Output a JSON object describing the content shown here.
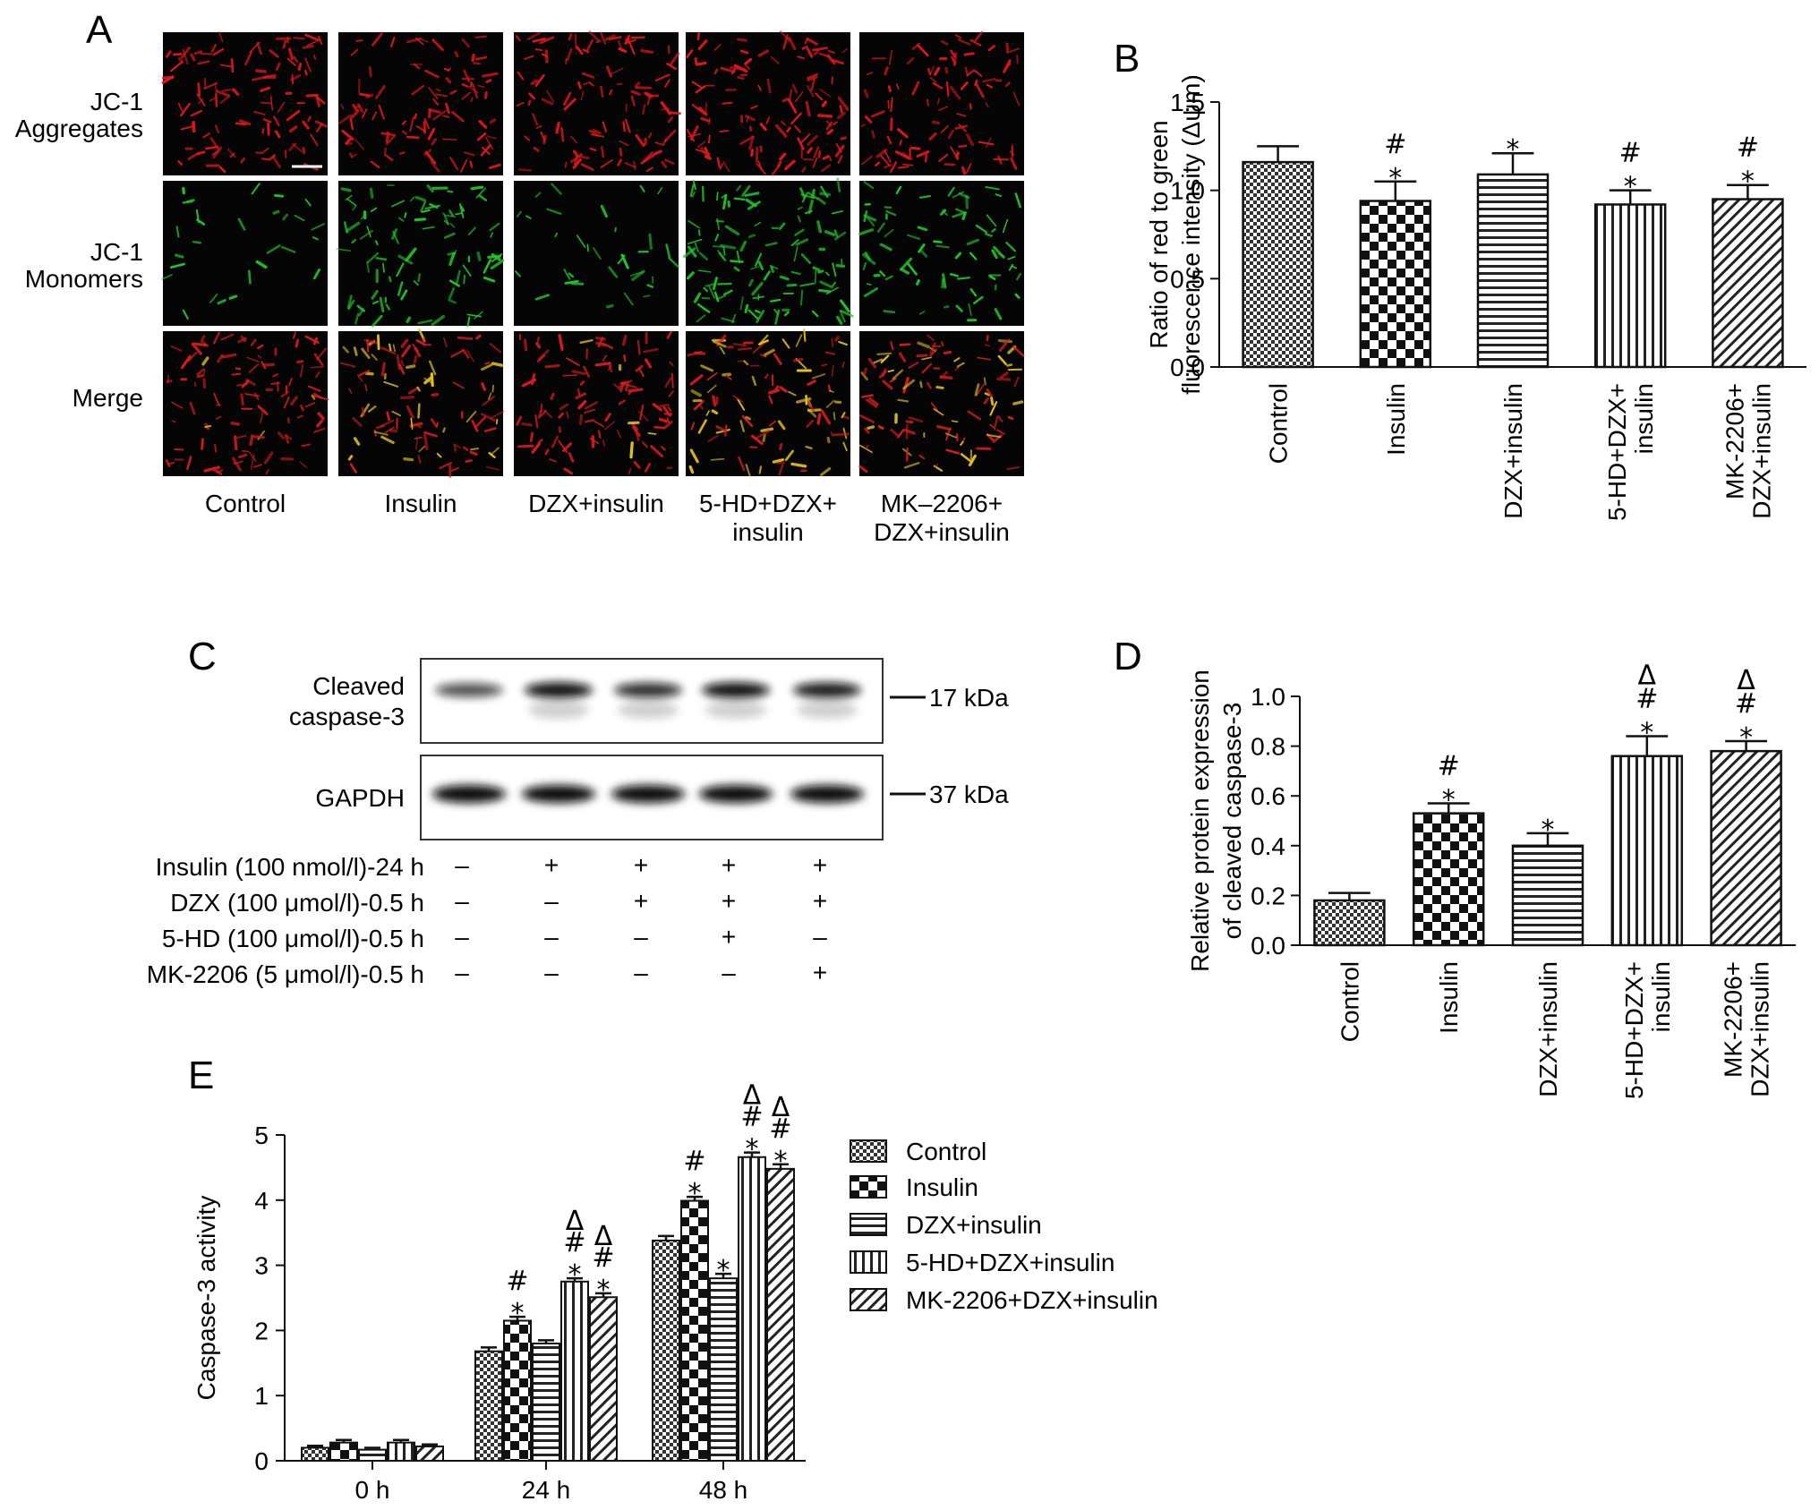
{
  "figure": {
    "panels": {
      "a": "A",
      "b": "B",
      "c": "C",
      "d": "D",
      "e": "E"
    }
  },
  "panel_a": {
    "row_labels": [
      [
        "JC-1",
        "Aggregates"
      ],
      [
        "JC-1",
        "Monomers"
      ],
      [
        "Merge"
      ]
    ],
    "col_labels": [
      [
        "Control"
      ],
      [
        "Insulin"
      ],
      [
        "DZX+insulin"
      ],
      [
        "5-HD+DZX+",
        "insulin"
      ],
      [
        "MK–2206+",
        "DZX+insulin"
      ]
    ],
    "row_colors": {
      "aggregates": "#e0181b",
      "monomers": "#22c52a",
      "merge_red": "#d81c1c",
      "merge_yellow": "#e6c21c"
    }
  },
  "panel_c": {
    "protein_rows": [
      {
        "label_lines": [
          "Cleaved",
          "caspase-3"
        ],
        "marker": "17 kDa"
      },
      {
        "label_lines": [
          "GAPDH"
        ],
        "marker": "37 kDa"
      }
    ],
    "treatment_rows": [
      {
        "label": "Insulin (100 nmol/l)-24 h",
        "signs": [
          "–",
          "+",
          "+",
          "+",
          "+"
        ]
      },
      {
        "label": "DZX (100 μmol/l)-0.5 h",
        "signs": [
          "–",
          "–",
          "+",
          "+",
          "+"
        ]
      },
      {
        "label": "5-HD (100 μmol/l)-0.5 h",
        "signs": [
          "–",
          "–",
          "–",
          "+",
          "–"
        ]
      },
      {
        "label": "MK-2206 (5 μmol/l)-0.5 h",
        "signs": [
          "–",
          "–",
          "–",
          "–",
          "+"
        ]
      }
    ],
    "band_intensity_caspase": [
      0.55,
      0.9,
      0.75,
      0.9,
      0.85
    ],
    "band_intensity_gapdh": [
      1,
      1,
      1,
      1,
      1
    ]
  },
  "chart_data": [
    {
      "id": "B",
      "type": "bar",
      "ylabel_lines": [
        "Ratio of red to green",
        "fluorescence intensity (Δψm)"
      ],
      "xlabel": "",
      "categories": [
        [
          "Control"
        ],
        [
          "Insulin"
        ],
        [
          "DZX+insulin"
        ],
        [
          "5-HD+DZX+",
          "insulin"
        ],
        [
          "MK-2206+",
          "DZX+insulin"
        ]
      ],
      "values": [
        1.16,
        0.94,
        1.09,
        0.92,
        0.95
      ],
      "errors": [
        0.09,
        0.11,
        0.12,
        0.08,
        0.08
      ],
      "annotations": [
        [],
        [
          "*",
          "#"
        ],
        [
          "*"
        ],
        [
          "*",
          "#"
        ],
        [
          "*",
          "#"
        ]
      ],
      "ylim": [
        0,
        1.5
      ],
      "yticks": [
        "0.0",
        "0.5",
        "1.0",
        "1.5"
      ],
      "patterns": [
        "pat-check-fine",
        "pat-check",
        "pat-hstripe",
        "pat-vstripe",
        "pat-diag"
      ]
    },
    {
      "id": "D",
      "type": "bar",
      "ylabel_lines": [
        "Relative protein expression",
        "of cleaved caspase-3"
      ],
      "xlabel": "",
      "categories": [
        [
          "Control"
        ],
        [
          "Insulin"
        ],
        [
          "DZX+insulin"
        ],
        [
          "5-HD+DZX+",
          "insulin"
        ],
        [
          "MK-2206+",
          "DZX+insulin"
        ]
      ],
      "values": [
        0.18,
        0.53,
        0.4,
        0.76,
        0.78
      ],
      "errors": [
        0.03,
        0.04,
        0.05,
        0.08,
        0.04
      ],
      "annotations": [
        [],
        [
          "*",
          "#"
        ],
        [
          "*"
        ],
        [
          "*",
          "#",
          "Δ"
        ],
        [
          "*",
          "#",
          "Δ"
        ]
      ],
      "ylim": [
        0,
        1.0
      ],
      "yticks": [
        "0.0",
        "0.2",
        "0.4",
        "0.6",
        "0.8",
        "1.0"
      ],
      "patterns": [
        "pat-check-fine",
        "pat-check",
        "pat-hstripe",
        "pat-vstripe",
        "pat-diag"
      ]
    },
    {
      "id": "E",
      "type": "bar",
      "ylabel": "Caspase-3 activity",
      "xlabel": "",
      "categories": [
        "0 h",
        "24 h",
        "48 h"
      ],
      "series": [
        {
          "name": "Control",
          "values": [
            0.2,
            1.68,
            3.38
          ],
          "errors": [
            0.03,
            0.06,
            0.07
          ],
          "annotations": [
            [],
            [],
            []
          ]
        },
        {
          "name": "Insulin",
          "values": [
            0.28,
            2.15,
            3.99
          ],
          "errors": [
            0.04,
            0.06,
            0.06
          ],
          "annotations": [
            [],
            [
              "*",
              "#"
            ],
            [
              "*",
              "#"
            ]
          ]
        },
        {
          "name": "DZX+insulin",
          "values": [
            0.17,
            1.8,
            2.8
          ],
          "errors": [
            0.03,
            0.05,
            0.07
          ],
          "annotations": [
            [],
            [],
            [
              "*"
            ]
          ]
        },
        {
          "name": "5-HD+DZX+insulin",
          "values": [
            0.28,
            2.75,
            4.66
          ],
          "errors": [
            0.04,
            0.05,
            0.07
          ],
          "annotations": [
            [],
            [
              "*",
              "#",
              "Δ"
            ],
            [
              "*",
              "#",
              "Δ"
            ]
          ]
        },
        {
          "name": "MK-2206+DZX+insulin",
          "values": [
            0.22,
            2.51,
            4.48
          ],
          "errors": [
            0.03,
            0.06,
            0.07
          ],
          "annotations": [
            [],
            [
              "*",
              "#",
              "Δ"
            ],
            [
              "*",
              "#",
              "Δ"
            ]
          ]
        }
      ],
      "ylim": [
        0,
        5
      ],
      "yticks": [
        "0",
        "1",
        "2",
        "3",
        "4",
        "5"
      ],
      "patterns": [
        "pat-check-fine",
        "pat-check",
        "pat-hstripe",
        "pat-vstripe",
        "pat-diag"
      ],
      "legend_position": "right"
    }
  ]
}
